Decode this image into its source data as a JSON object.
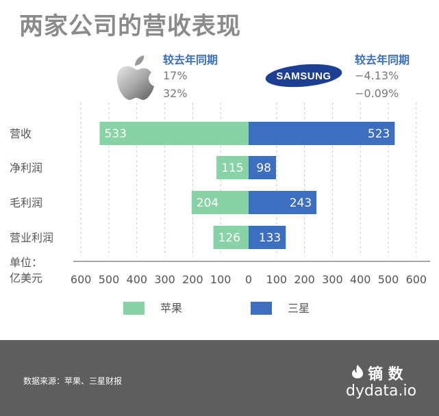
{
  "title": "两家公司的营收表现",
  "comparison": {
    "apple": {
      "header": "较去年同期",
      "values": [
        "17%",
        "32%"
      ]
    },
    "samsung": {
      "header": "较去年同期",
      "values": [
        "−4.13%",
        "−0.09%"
      ]
    }
  },
  "logos": {
    "apple": "apple-logo",
    "samsung_text": "SAMSUNG"
  },
  "chart_data": {
    "type": "bar",
    "orientation": "horizontal-diverging",
    "categories": [
      "营收",
      "净利润",
      "毛利润",
      "营业利润"
    ],
    "series": [
      {
        "name": "苹果",
        "values": [
          533,
          115,
          204,
          126
        ],
        "color": "#88d3a5",
        "side": "left"
      },
      {
        "name": "三星",
        "values": [
          523,
          98,
          243,
          133
        ],
        "color": "#3d6fc0",
        "side": "right"
      }
    ],
    "xlabel": "单位：亿美元",
    "xlabel_lines": [
      "单位：",
      "亿美元"
    ],
    "xticks": [
      "600",
      "500",
      "400",
      "300",
      "200",
      "100",
      "0",
      "100",
      "200",
      "300",
      "400",
      "500",
      "600"
    ],
    "xlim": [
      -600,
      600
    ],
    "grid": true,
    "legend": {
      "placement": "bottom",
      "items": [
        "苹果",
        "三星"
      ]
    }
  },
  "footer": {
    "source": "数据来源：苹果、三星财报",
    "brand": "镝 数",
    "url": "dydata.io",
    "brand_icon": "flame-icon"
  }
}
